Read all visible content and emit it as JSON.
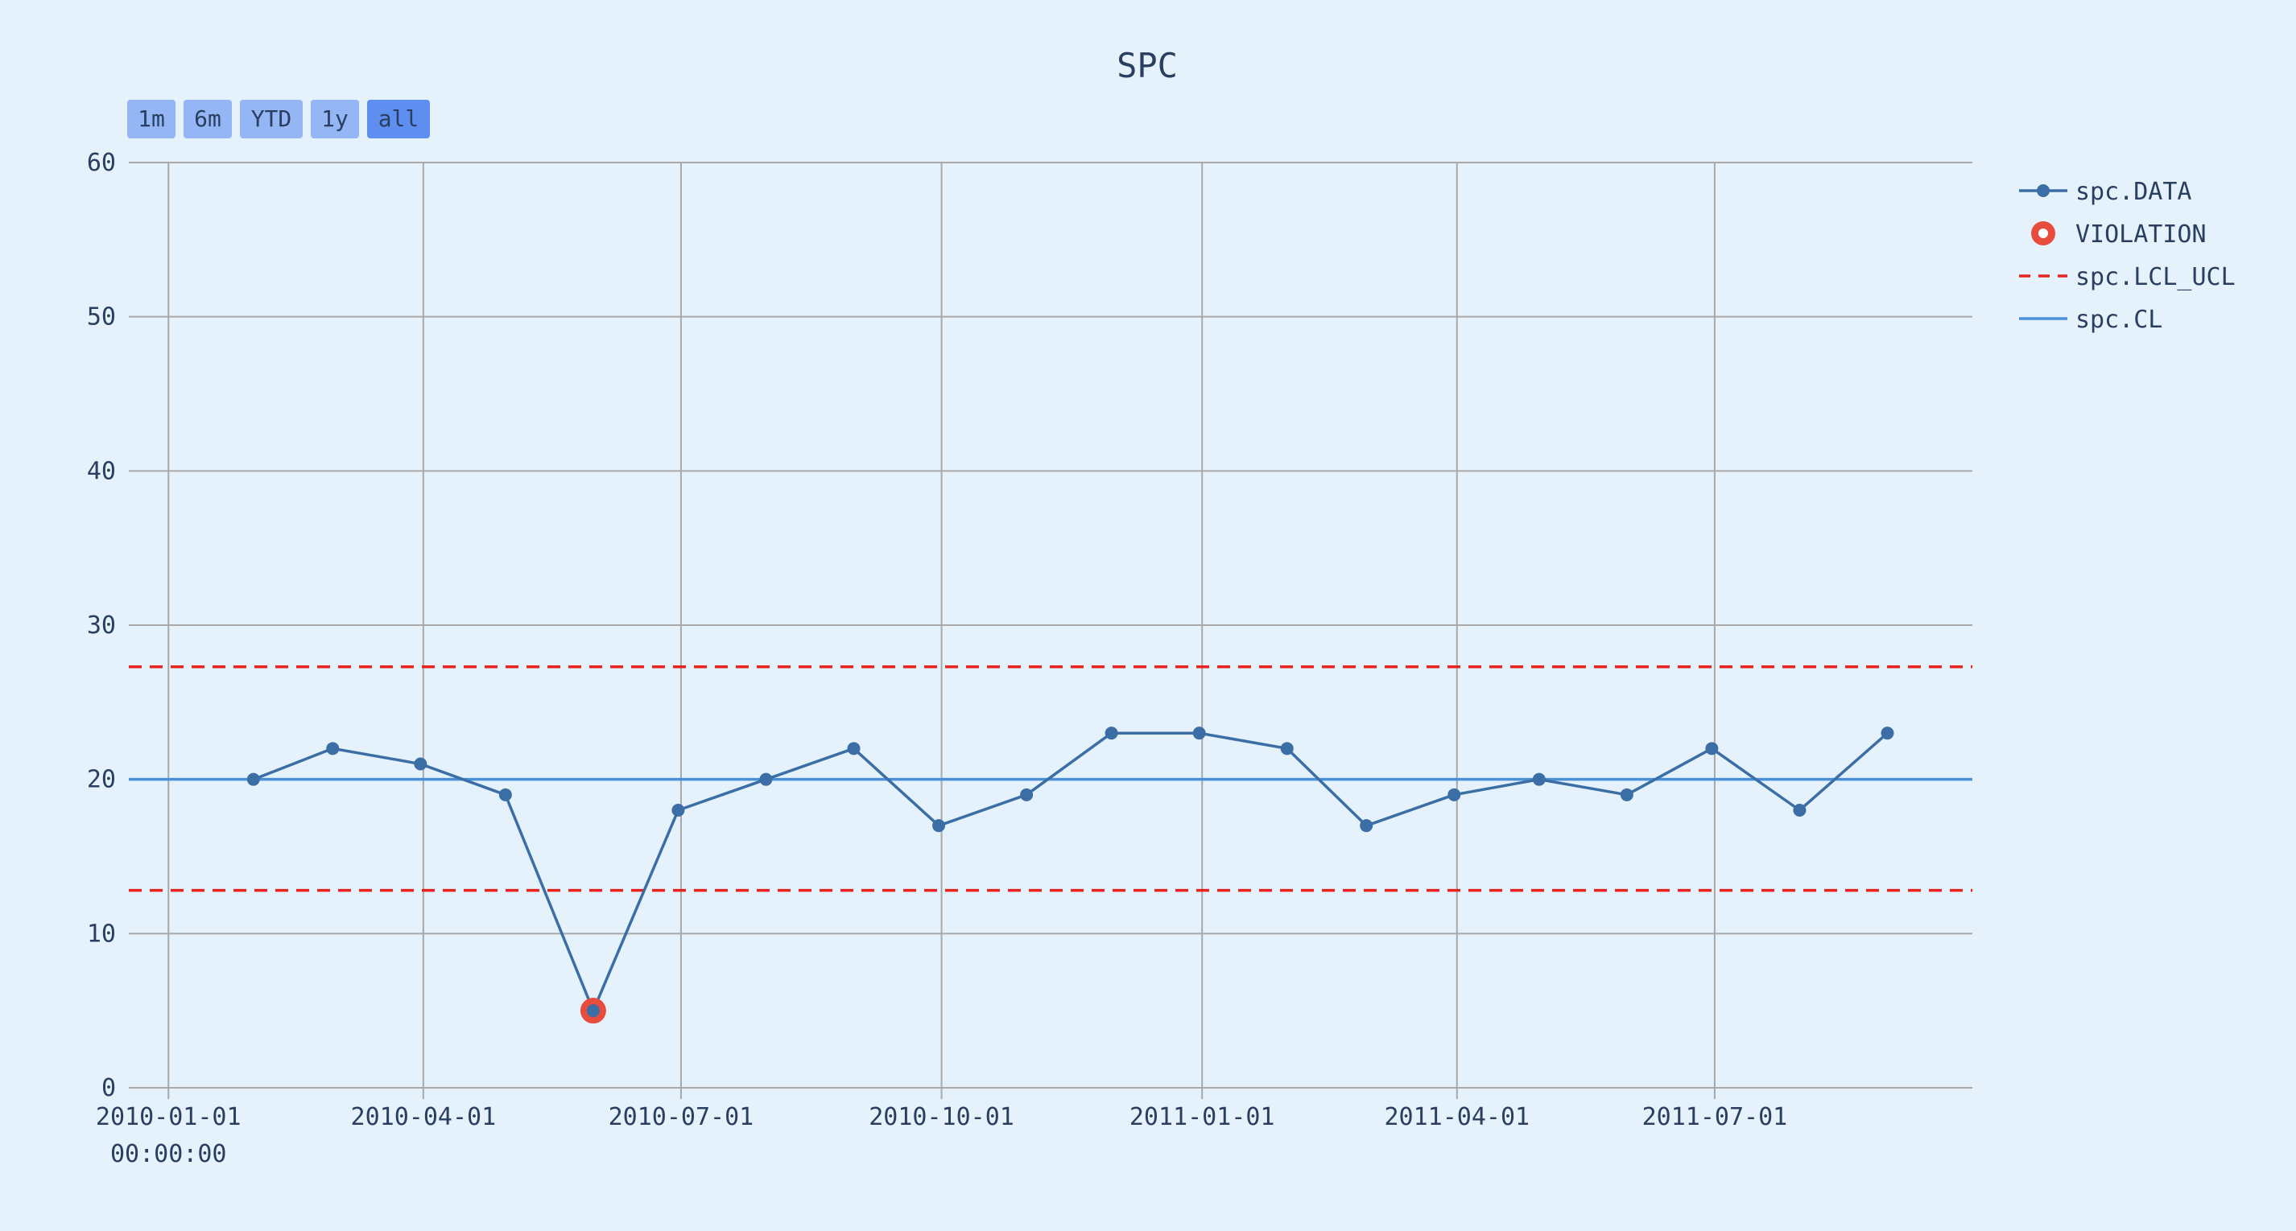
{
  "chart_data": {
    "type": "line",
    "title": "SPC",
    "range_selector": [
      {
        "label": "1m",
        "active": false
      },
      {
        "label": "6m",
        "active": false
      },
      {
        "label": "YTD",
        "active": false
      },
      {
        "label": "1y",
        "active": false
      },
      {
        "label": "all",
        "active": true
      }
    ],
    "x_ticks": [
      {
        "date": "2010-01-01",
        "label": "2010-01-01",
        "sublabel": "00:00:00"
      },
      {
        "date": "2010-04-01",
        "label": "2010-04-01",
        "sublabel": ""
      },
      {
        "date": "2010-07-01",
        "label": "2010-07-01",
        "sublabel": ""
      },
      {
        "date": "2010-10-01",
        "label": "2010-10-01",
        "sublabel": ""
      },
      {
        "date": "2011-01-01",
        "label": "2011-01-01",
        "sublabel": ""
      },
      {
        "date": "2011-04-01",
        "label": "2011-04-01",
        "sublabel": ""
      },
      {
        "date": "2011-07-01",
        "label": "2011-07-01",
        "sublabel": ""
      }
    ],
    "xlim": [
      "2009-12-18",
      "2011-09-30"
    ],
    "ylim": [
      0,
      60
    ],
    "y_ticks": [
      0,
      10,
      20,
      30,
      40,
      50,
      60
    ],
    "grid": true,
    "legend_position": "top-right",
    "series": [
      {
        "name": "spc.DATA",
        "kind": "line+markers",
        "color": "#3a6ea5",
        "points": [
          {
            "x": "2010-01-31",
            "y": 20
          },
          {
            "x": "2010-02-28",
            "y": 22
          },
          {
            "x": "2010-03-31",
            "y": 21
          },
          {
            "x": "2010-04-30",
            "y": 19
          },
          {
            "x": "2010-05-31",
            "y": 5
          },
          {
            "x": "2010-06-30",
            "y": 18
          },
          {
            "x": "2010-07-31",
            "y": 20
          },
          {
            "x": "2010-08-31",
            "y": 22
          },
          {
            "x": "2010-09-30",
            "y": 17
          },
          {
            "x": "2010-10-31",
            "y": 19
          },
          {
            "x": "2010-11-30",
            "y": 23
          },
          {
            "x": "2010-12-31",
            "y": 23
          },
          {
            "x": "2011-01-31",
            "y": 22
          },
          {
            "x": "2011-02-28",
            "y": 17
          },
          {
            "x": "2011-03-31",
            "y": 19
          },
          {
            "x": "2011-04-30",
            "y": 20
          },
          {
            "x": "2011-05-31",
            "y": 19
          },
          {
            "x": "2011-06-30",
            "y": 22
          },
          {
            "x": "2011-07-31",
            "y": 18
          },
          {
            "x": "2011-08-31",
            "y": 23
          }
        ]
      },
      {
        "name": "VIOLATION",
        "kind": "markers",
        "color": "#e74c3c",
        "points": [
          {
            "x": "2010-05-31",
            "y": 5
          }
        ]
      },
      {
        "name": "spc.LCL_UCL",
        "kind": "dashed-hlines",
        "color": "#e8231f",
        "values": [
          12.8,
          27.3
        ]
      },
      {
        "name": "spc.CL",
        "kind": "hline",
        "color": "#4a90d9",
        "values": [
          20
        ]
      }
    ]
  }
}
